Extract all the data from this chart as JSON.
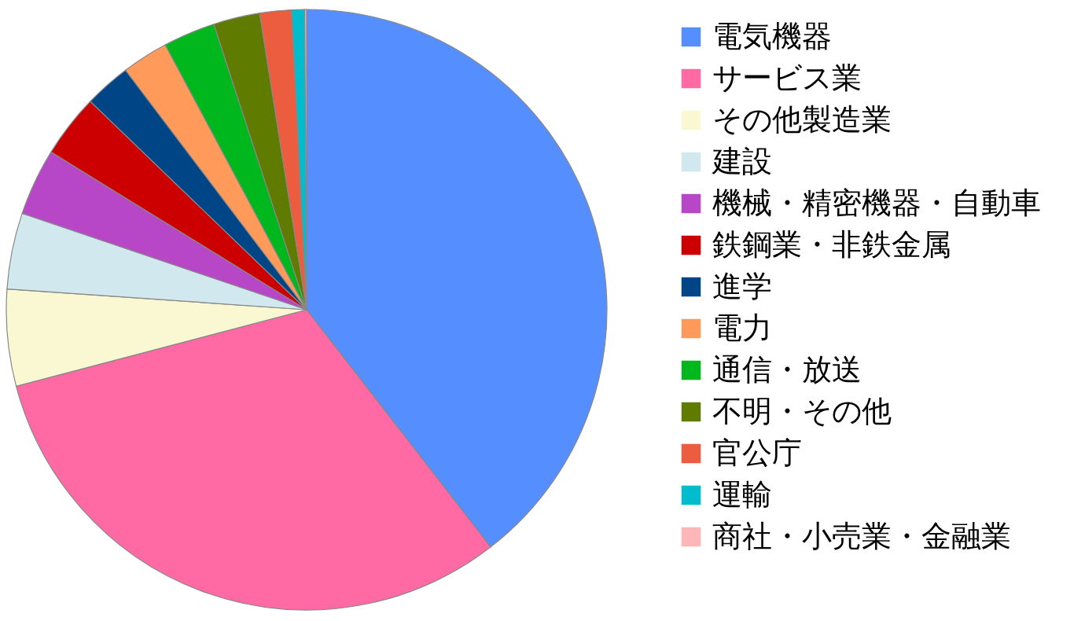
{
  "chart_data": {
    "type": "pie",
    "categories": [
      "電気機器",
      "サービス業",
      "その他製造業",
      "建設",
      "機械・精密機器・自動車",
      "鉄鋼業・非鉄金属",
      "進学",
      "電力",
      "通信・放送",
      "不明・その他",
      "官公庁",
      "運輸",
      "商社・小売業・金融業"
    ],
    "values": [
      39.5,
      31.4,
      5.2,
      4.1,
      3.6,
      3.4,
      2.5,
      2.5,
      2.8,
      2.5,
      1.7,
      0.7,
      0.1
    ],
    "colors": [
      "#558fff",
      "#ff69a4",
      "#faf8d2",
      "#d0e8ee",
      "#b847c8",
      "#cc0000",
      "#004586",
      "#ff9a5a",
      "#00b81e",
      "#5f7b00",
      "#ec5c3e",
      "#00bccc",
      "#ffb6b6"
    ],
    "legend": "right"
  }
}
